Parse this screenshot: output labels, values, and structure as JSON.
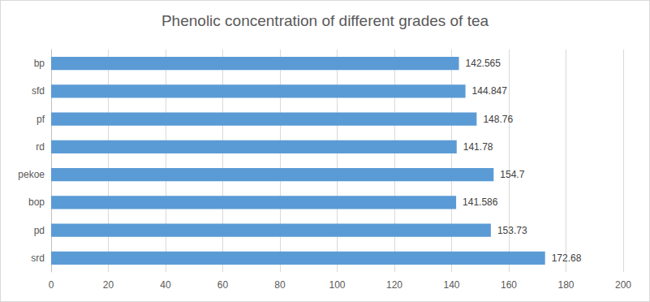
{
  "chart_data": {
    "type": "bar",
    "title": "Phenolic concentration of different grades of tea",
    "orientation": "horizontal",
    "categories": [
      "srd",
      "pd",
      "bop",
      "pekoe",
      "rd",
      "pf",
      "sfd",
      "bp"
    ],
    "values": [
      172.68,
      153.73,
      141.586,
      154.7,
      141.78,
      148.76,
      144.847,
      142.565
    ],
    "color": "#5b9bd5",
    "xlim": [
      0,
      200
    ],
    "xticks": [
      0,
      20,
      40,
      60,
      80,
      100,
      120,
      140,
      160,
      180,
      200
    ],
    "grid": true,
    "data_labels": true
  }
}
